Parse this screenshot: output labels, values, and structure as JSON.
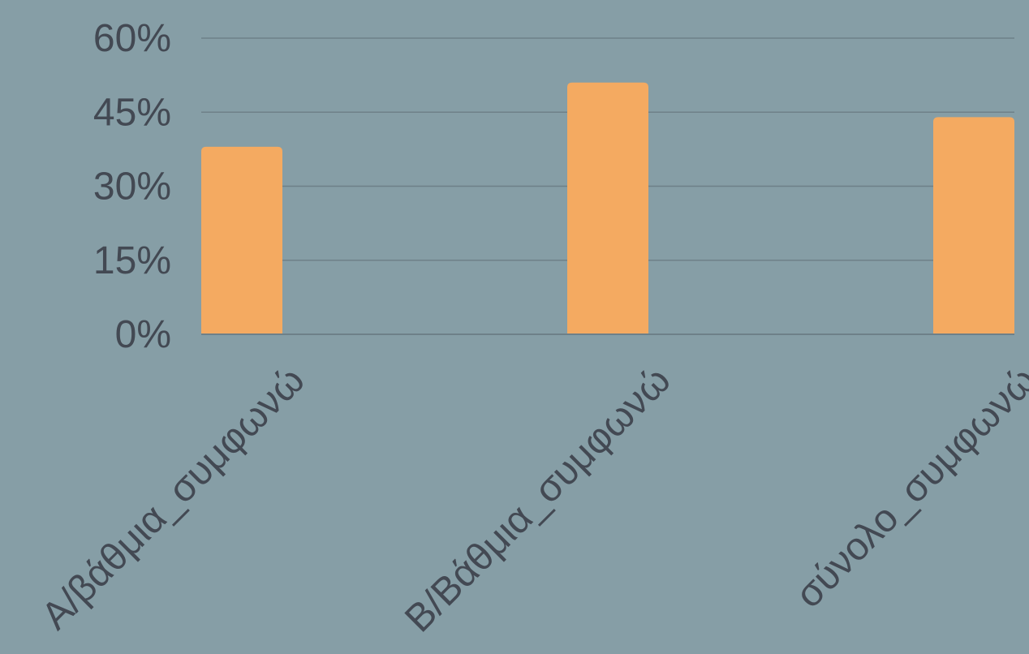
{
  "colors": {
    "background": "#869ea6",
    "bar": "#f4aa61",
    "gridline": "#6e8088",
    "text": "#434953"
  },
  "chart_data": {
    "type": "bar",
    "title": "",
    "xlabel": "",
    "ylabel": "",
    "categories": [
      "Α/βάθμια_συμφωνώ",
      "Β/Βάθμια_συμφωνώ",
      "σύνολο_συμφωνώ"
    ],
    "values": [
      38,
      51,
      44
    ],
    "value_format": "percent",
    "ylim": [
      0,
      60
    ],
    "yticks": [
      0,
      15,
      30,
      45,
      60
    ],
    "ytick_labels": [
      "0%",
      "15%",
      "30%",
      "45%",
      "60%"
    ],
    "grid": true,
    "legend": "none"
  }
}
